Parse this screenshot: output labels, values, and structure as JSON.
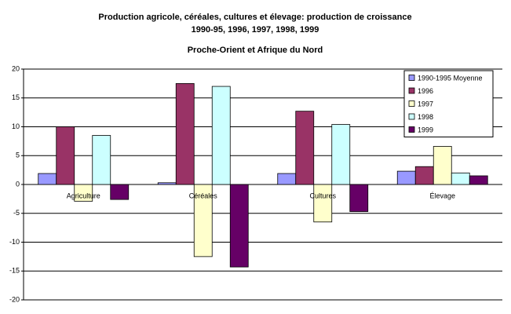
{
  "chart_data": {
    "type": "bar",
    "title_lines": [
      "Production agricole, céréales, cultures et élevage: production de croissance",
      "1990-95, 1996, 1997, 1998, 1999",
      "Proche-Orient et Afrique du Nord"
    ],
    "categories": [
      "Agriculture",
      "Céréales",
      "Cultures",
      "Élevage"
    ],
    "series": [
      {
        "name": "1990-1995 Moyenne",
        "color": "#9999ff",
        "values": [
          1.9,
          0.3,
          1.9,
          2.3
        ]
      },
      {
        "name": "1996",
        "color": "#993366",
        "values": [
          10,
          17.5,
          12.7,
          3.1
        ]
      },
      {
        "name": "1997",
        "color": "#ffffcc",
        "values": [
          -2.9,
          -12.5,
          -6.5,
          6.6
        ]
      },
      {
        "name": "1998",
        "color": "#ccffff",
        "values": [
          8.5,
          17,
          10.4,
          2.0
        ]
      },
      {
        "name": "1999",
        "color": "#660066",
        "values": [
          -2.6,
          -14.3,
          -4.7,
          1.5
        ]
      }
    ],
    "ylim": [
      -20,
      20
    ],
    "yticks": [
      -20,
      -15,
      -10,
      -5,
      0,
      5,
      10,
      15,
      20
    ],
    "grid": true,
    "legend": "top-right"
  }
}
